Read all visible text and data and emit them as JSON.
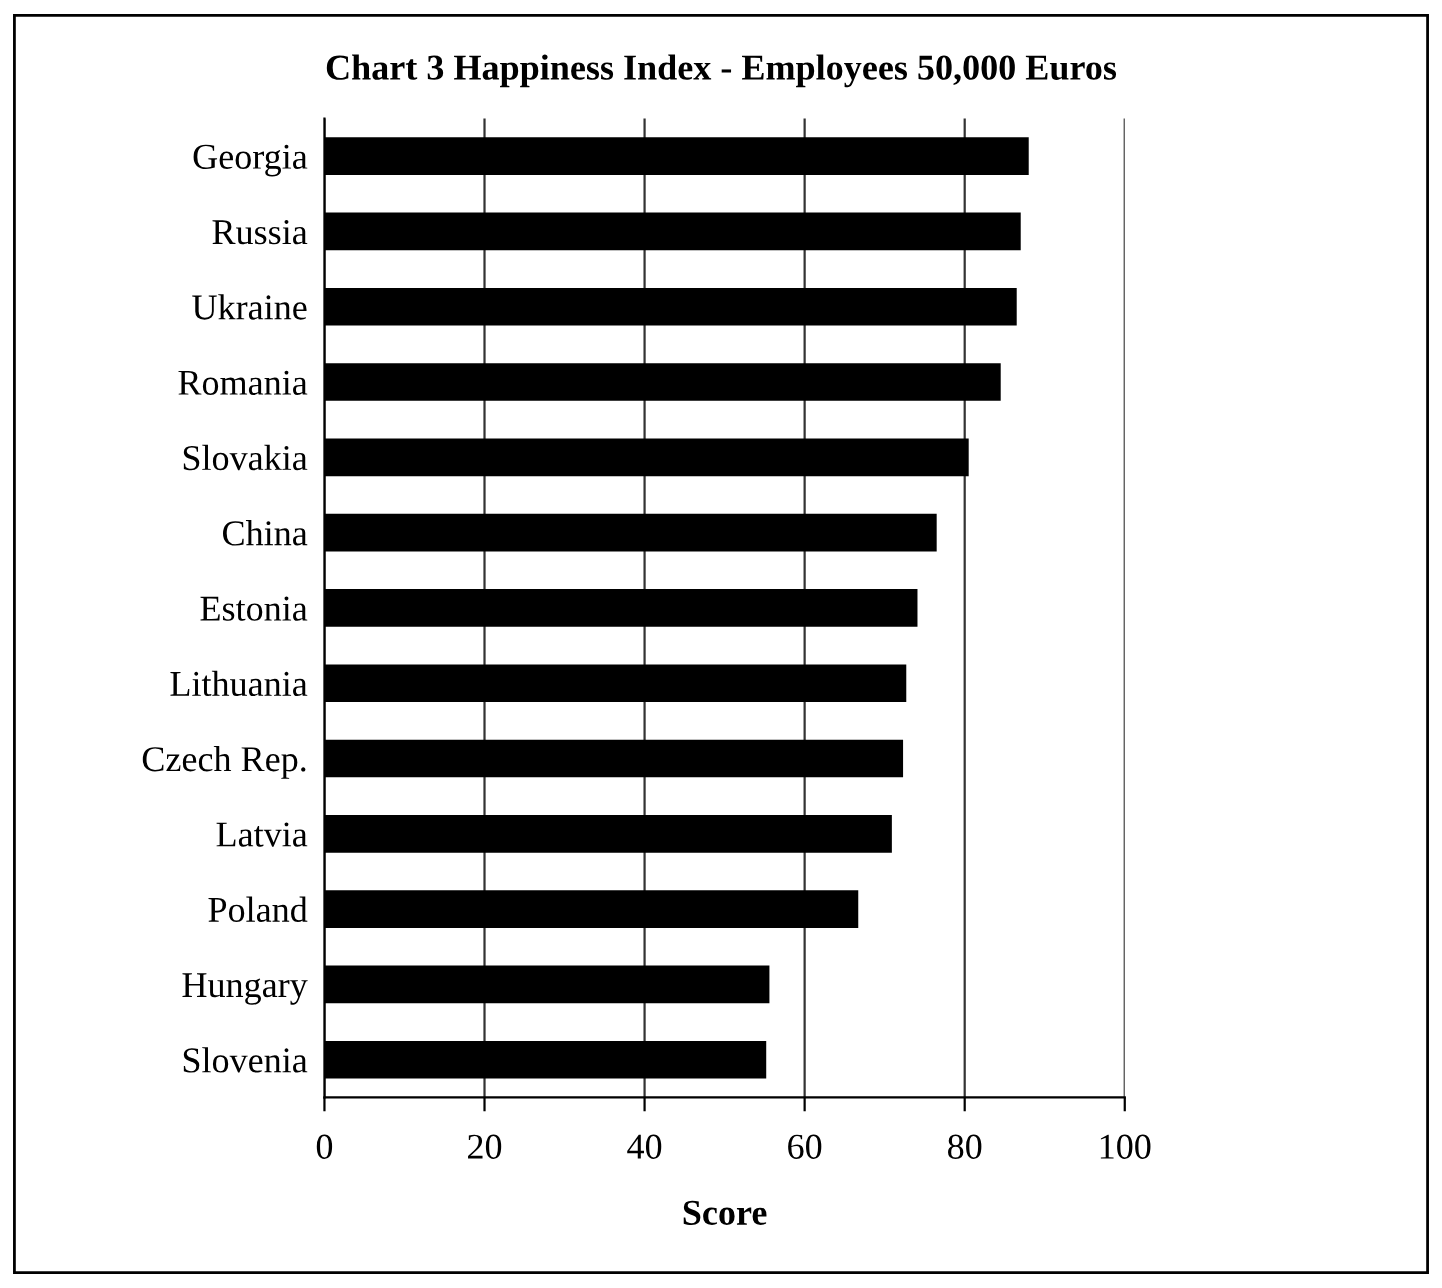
{
  "chart_data": {
    "type": "bar",
    "orientation": "horizontal",
    "title": "Chart 3 Happiness Index - Employees 50,000 Euros",
    "xlabel": "Score",
    "categories": [
      "Georgia",
      "Russia",
      "Ukraine",
      "Romania",
      "Slovakia",
      "China",
      "Estonia",
      "Lithuania",
      "Czech Rep.",
      "Latvia",
      "Poland",
      "Hungary",
      "Slovenia"
    ],
    "values": [
      88,
      87,
      86.5,
      84.5,
      80.5,
      76.5,
      74.1,
      72.7,
      72.3,
      70.9,
      66.7,
      55.6,
      55.2
    ],
    "color": "#000000",
    "xlim": [
      0,
      100
    ],
    "xticks": [
      0,
      20,
      40,
      60,
      80,
      100
    ],
    "grid": "x",
    "legend": false
  }
}
